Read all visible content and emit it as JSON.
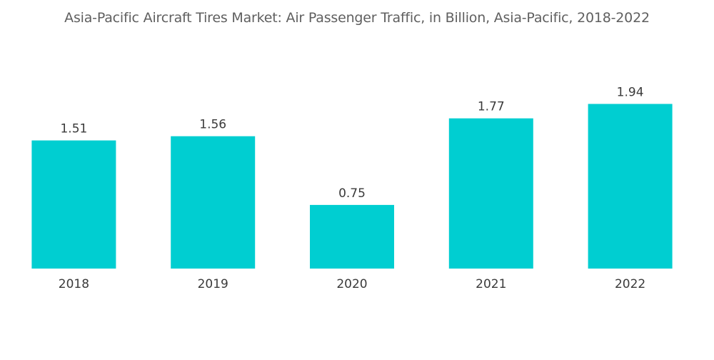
{
  "chart_data": {
    "type": "bar",
    "title": "Asia-Pacific Aircraft Tires Market: Air Passenger Traffic, in Billion, Asia-Pacific, 2018-2022",
    "xlabel": "",
    "ylabel": "",
    "categories": [
      "2018",
      "2019",
      "2020",
      "2021",
      "2022"
    ],
    "values": [
      1.51,
      1.56,
      0.75,
      1.77,
      1.94
    ],
    "value_labels": [
      "1.51",
      "1.56",
      "0.75",
      "1.77",
      "1.94"
    ],
    "ylim": [
      0,
      2.0
    ],
    "grid": false,
    "legend": "none",
    "bar_color": "#00ced1"
  }
}
